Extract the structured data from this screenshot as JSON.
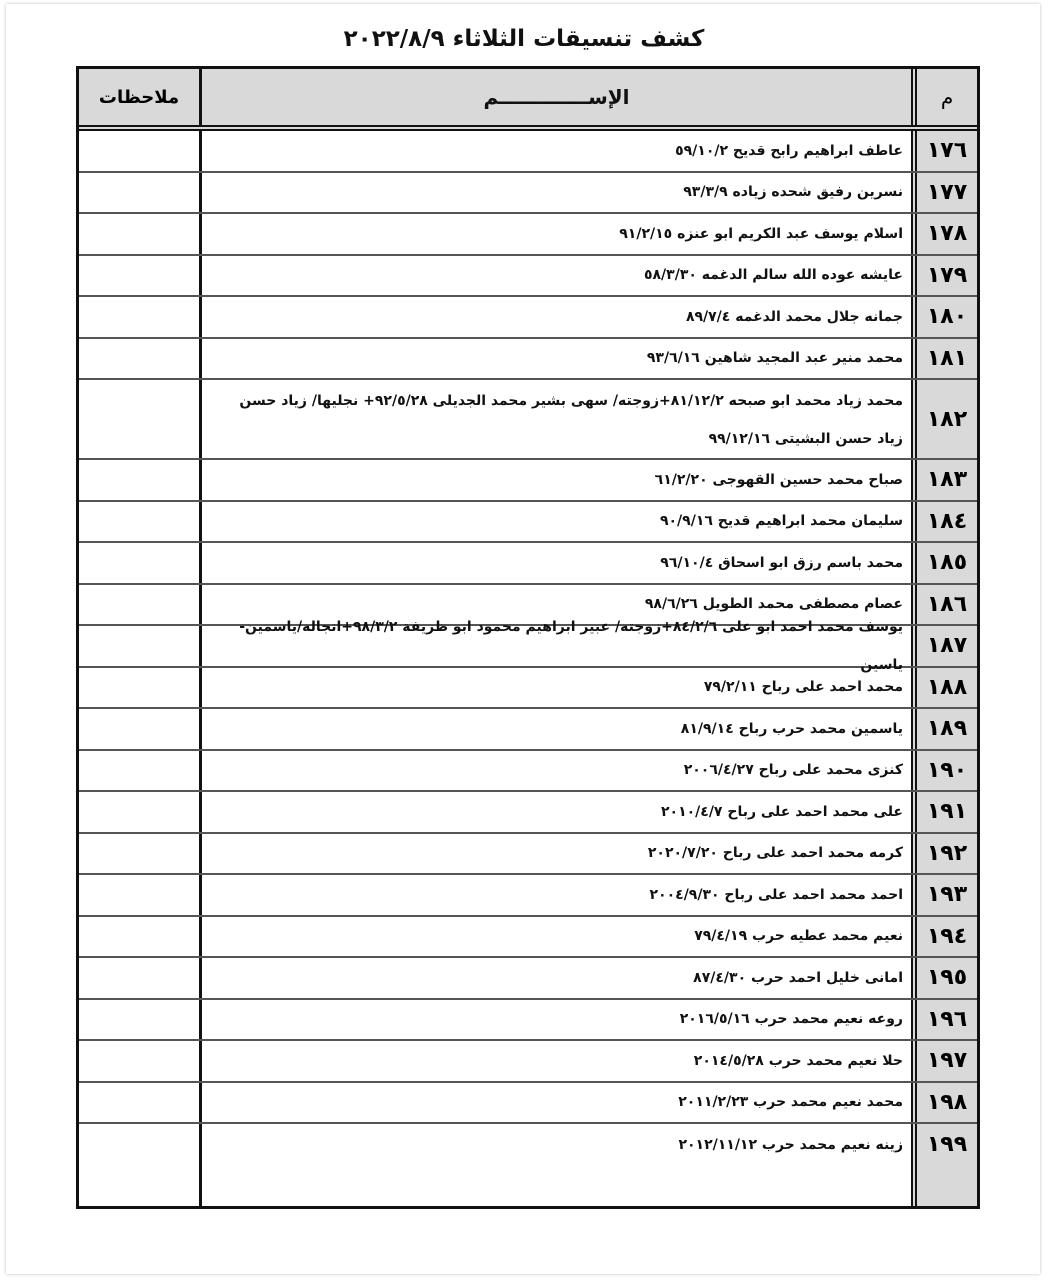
{
  "title": "كشف تنسيقات الثلاثاء ٢٠٢٢/٨/٩",
  "headers": {
    "number": "م",
    "name": "الإســـــــــــــم",
    "notes": "ملاحظات"
  },
  "rows": [
    {
      "number": "١٧٦",
      "name": "عاطف ابراهيم رابح قديح ٥٩/١٠/٢",
      "notes": ""
    },
    {
      "number": "١٧٧",
      "name": "نسرين رفيق شحده زياده ٩٣/٣/٩",
      "notes": ""
    },
    {
      "number": "١٧٨",
      "name": "اسلام يوسف عبد الكريم ابو عنزه ٩١/٢/١٥",
      "notes": ""
    },
    {
      "number": "١٧٩",
      "name": "عايشه عوده الله سالم الدغمه ٥٨/٣/٣٠",
      "notes": ""
    },
    {
      "number": "١٨٠",
      "name": "جمانه جلال محمد الدغمه ٨٩/٧/٤",
      "notes": ""
    },
    {
      "number": "١٨١",
      "name": "محمد منير عبد المجيد شاهين ٩٣/٦/١٦",
      "notes": ""
    },
    {
      "number": "١٨٢",
      "name": "محمد زياد محمد ابو صبحه ٨١/١٢/٢+زوجته/ سهى بشير محمد الجديلى ٩٢/٥/٢٨+ نجليها/ زياد حسن زياد حسن البشيتى ٩٩/١٢/١٦",
      "notes": ""
    },
    {
      "number": "١٨٣",
      "name": "صباح محمد حسين القهوجى ٦١/٢/٢٠",
      "notes": ""
    },
    {
      "number": "١٨٤",
      "name": "سليمان محمد ابراهيم قديح ٩٠/٩/١٦",
      "notes": ""
    },
    {
      "number": "١٨٥",
      "name": "محمد باسم رزق ابو اسحاق ٩٦/١٠/٤",
      "notes": ""
    },
    {
      "number": "١٨٦",
      "name": "عصام مصطفى محمد الطويل ٩٨/٦/٢٦",
      "notes": ""
    },
    {
      "number": "١٨٧",
      "name": "يوسف محمد احمد ابو على ٨٤/٢/٦+زوجته/ عبير ابراهيم محمود ابو ظريفة ٩٨/٣/٢+انجاله/ياسمين- ياسين",
      "notes": ""
    },
    {
      "number": "١٨٨",
      "name": "محمد احمد على رباح ٧٩/٢/١١",
      "notes": ""
    },
    {
      "number": "١٨٩",
      "name": "ياسمين محمد حرب رباح ٨١/٩/١٤",
      "notes": ""
    },
    {
      "number": "١٩٠",
      "name": "كنزى محمد على رباح ٢٠٠٦/٤/٢٧",
      "notes": ""
    },
    {
      "number": "١٩١",
      "name": "على محمد احمد على رباح ٢٠١٠/٤/٧",
      "notes": ""
    },
    {
      "number": "١٩٢",
      "name": "كرمه محمد احمد على رباح ٢٠٢٠/٧/٢٠",
      "notes": ""
    },
    {
      "number": "١٩٣",
      "name": "احمد محمد احمد على رباح ٢٠٠٤/٩/٣٠",
      "notes": ""
    },
    {
      "number": "١٩٤",
      "name": "نعيم محمد عطيه حرب ٧٩/٤/١٩",
      "notes": ""
    },
    {
      "number": "١٩٥",
      "name": "امانى خليل احمد حرب ٨٧/٤/٣٠",
      "notes": ""
    },
    {
      "number": "١٩٦",
      "name": "روعه نعيم محمد حرب ٢٠١٦/٥/١٦",
      "notes": ""
    },
    {
      "number": "١٩٧",
      "name": "حلا نعيم محمد حرب ٢٠١٤/٥/٢٨",
      "notes": ""
    },
    {
      "number": "١٩٨",
      "name": "محمد نعيم محمد حرب ٢٠١١/٢/٢٣",
      "notes": ""
    },
    {
      "number": "١٩٩",
      "name": "زينه نعيم محمد حرب ٢٠١٢/١١/١٢",
      "notes": ""
    }
  ],
  "colors": {
    "header_fill": "#d9d9d9",
    "number_fill": "#d9d9d9",
    "border": "#111111"
  }
}
